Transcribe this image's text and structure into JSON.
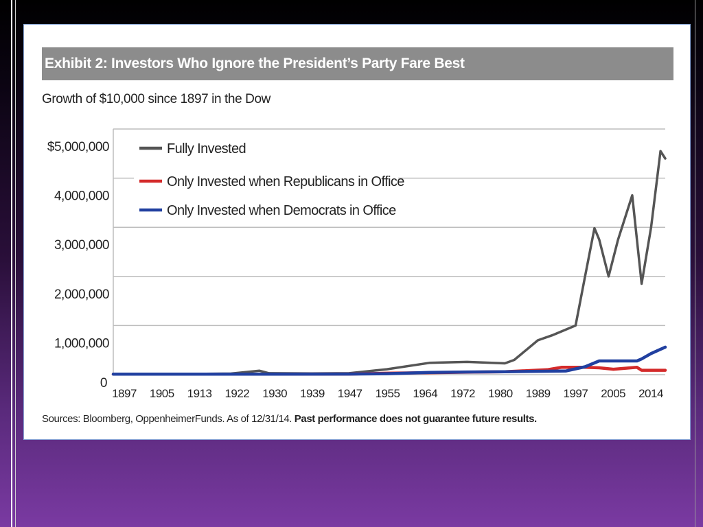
{
  "slide": {
    "exhibit_title": "Exhibit 2: Investors Who Ignore the President’s Party Fare Best",
    "subtitle": "Growth of $10,000 since 1897 in the Dow",
    "source_text": "Sources: Bloomberg, OppenheimerFunds. As of 12/31/14. ",
    "source_bold": "Past performance does not guarantee future results."
  },
  "chart_data": {
    "type": "line",
    "title": "Exhibit 2: Investors Who Ignore the President’s Party Fare Best",
    "subtitle": "Growth of $10,000 since 1897 in the Dow",
    "xlabel": "",
    "ylabel": "",
    "xlim": [
      1897,
      2014
    ],
    "ylim": [
      0,
      5000000
    ],
    "x_ticks": [
      "1897",
      "1905",
      "1913",
      "1922",
      "1930",
      "1939",
      "1947",
      "1955",
      "1964",
      "1972",
      "1980",
      "1989",
      "1997",
      "2005",
      "2014"
    ],
    "y_ticks": [
      "0",
      "1,000,000",
      "2,000,000",
      "3,000,000",
      "4,000,000",
      "$5,000,000"
    ],
    "grid": "horizontal",
    "legend_position": "top-left",
    "series": [
      {
        "name": "Fully Invested",
        "color": "#555555",
        "x": [
          1897,
          1905,
          1913,
          1922,
          1928,
          1930,
          1939,
          1947,
          1955,
          1964,
          1972,
          1980,
          1982,
          1987,
          1990,
          1995,
          1997,
          1999,
          2000,
          2002,
          2004,
          2007,
          2009,
          2011,
          2013,
          2014
        ],
        "values": [
          10000,
          12000,
          14000,
          22000,
          80000,
          30000,
          25000,
          30000,
          110000,
          240000,
          260000,
          230000,
          300000,
          700000,
          800000,
          1000000,
          2000000,
          2980000,
          2750000,
          2000000,
          2750000,
          3650000,
          1850000,
          3000000,
          4550000,
          4400000
        ]
      },
      {
        "name": "Only Invested when Republicans in Office",
        "color": "#d42a2a",
        "x": [
          1897,
          1913,
          1930,
          1947,
          1955,
          1964,
          1972,
          1980,
          1989,
          1992,
          1997,
          2000,
          2003,
          2008,
          2009,
          2014
        ],
        "values": [
          10000,
          10000,
          10000,
          12000,
          30000,
          40000,
          50000,
          60000,
          100000,
          150000,
          150000,
          140000,
          110000,
          150000,
          90000,
          90000
        ]
      },
      {
        "name": "Only Invested when Democrats in Office",
        "color": "#2140a0",
        "x": [
          1897,
          1913,
          1930,
          1947,
          1955,
          1964,
          1972,
          1980,
          1989,
          1993,
          1997,
          2000,
          2004,
          2008,
          2009,
          2011,
          2014
        ],
        "values": [
          10000,
          10000,
          10000,
          12000,
          20000,
          45000,
          55000,
          60000,
          70000,
          75000,
          160000,
          280000,
          280000,
          280000,
          320000,
          430000,
          560000
        ]
      }
    ]
  }
}
